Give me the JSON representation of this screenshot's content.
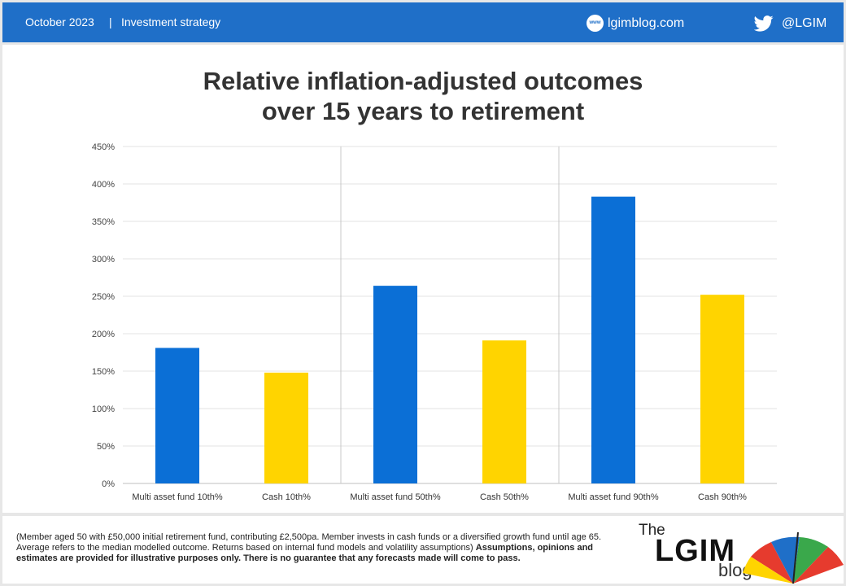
{
  "header": {
    "date": "October 2023",
    "separator": "|",
    "topic": "Investment strategy",
    "web_icon_text": "www",
    "site": "lgimblog.com",
    "handle": "@LGIM",
    "icons": [
      "globe-icon",
      "twitter-bird-icon"
    ],
    "bg_color": "#1f6fc8"
  },
  "chart_data": {
    "type": "bar",
    "title_line1": "Relative inflation-adjusted outcomes",
    "title_line2": "over 15 years to retirement",
    "categories": [
      "Multi asset fund 10th%",
      "Cash 10th%",
      "Multi asset fund 50th%",
      "Cash 50th%",
      "Multi asset fund 90th%",
      "Cash 90th%"
    ],
    "values": [
      181,
      148,
      264,
      191,
      383,
      252
    ],
    "bar_colors": [
      "#0b6fd6",
      "#ffd400",
      "#0b6fd6",
      "#ffd400",
      "#0b6fd6",
      "#ffd400"
    ],
    "y_ticks": [
      "0%",
      "50%",
      "100%",
      "150%",
      "200%",
      "250%",
      "300%",
      "350%",
      "400%",
      "450%"
    ],
    "ylim": [
      0,
      450
    ],
    "y_unit": "%",
    "grid": true,
    "group_separators_after": [
      1,
      3
    ]
  },
  "footer": {
    "note_plain": "(Member aged 50 with £50,000 initial retirement fund, contributing £2,500pa. Member invests in cash funds or a diversified growth fund until age 65. Average refers to the median modelled outcome. Returns based on internal fund models and volatility assumptions) ",
    "note_bold": "Assumptions, opinions and estimates are provided for illustrative purposes only. There is no guarantee that any forecasts made will come to pass.",
    "logo_the": "The",
    "logo_lgim": "LGIM",
    "logo_blog": "blog"
  }
}
